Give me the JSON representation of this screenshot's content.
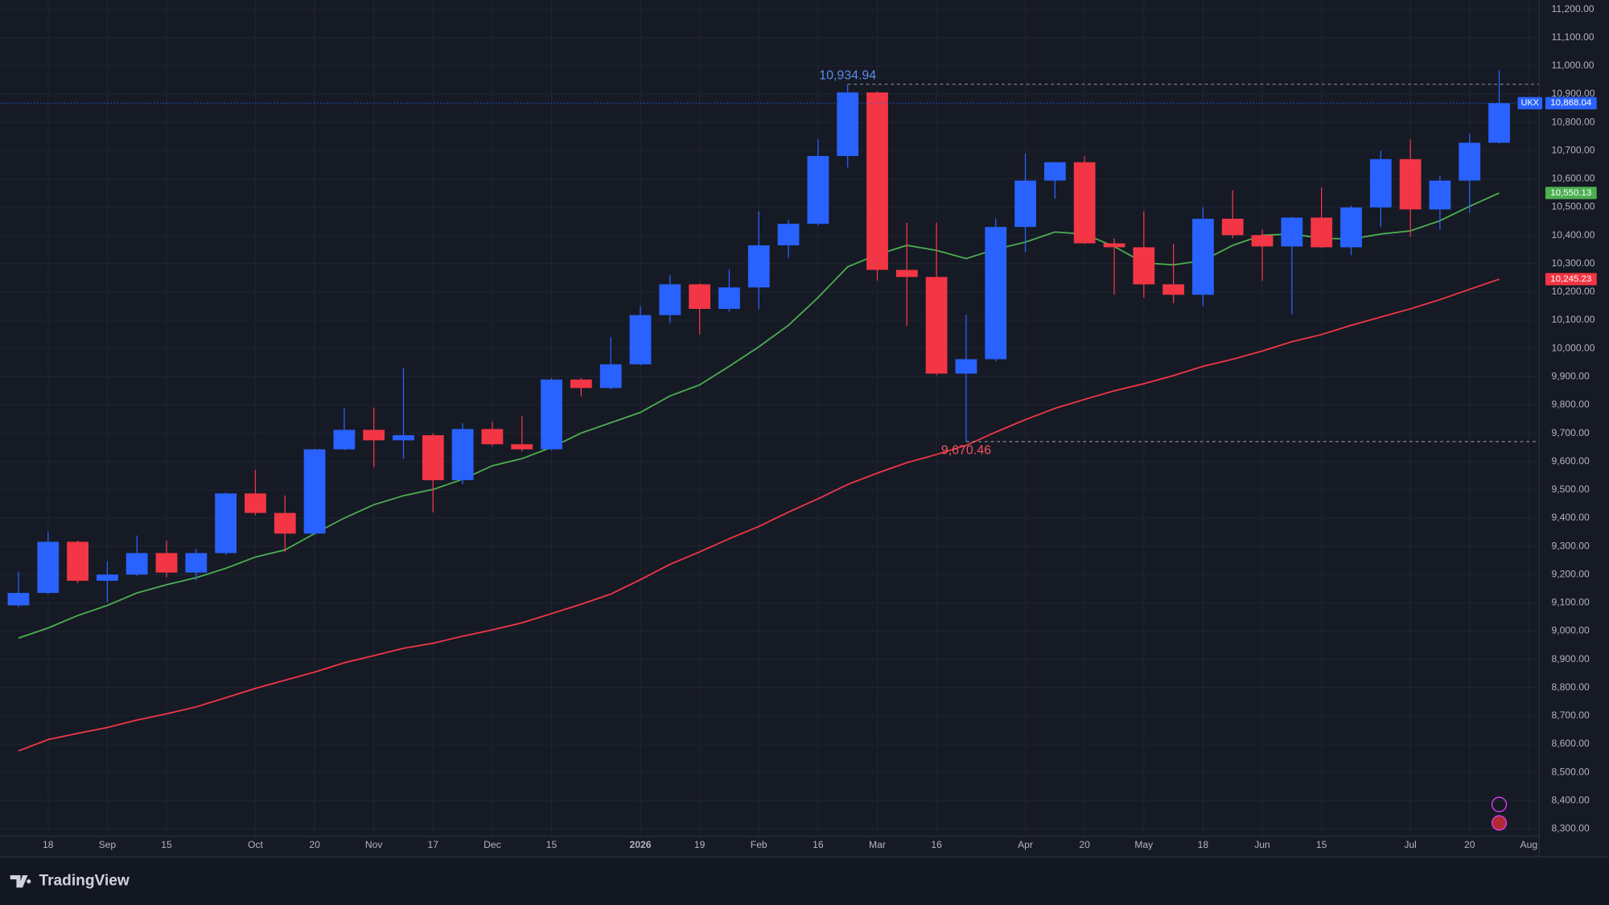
{
  "chart_data": {
    "type": "candlestick",
    "symbol": "UKX",
    "brand": "TradingView",
    "up_color": "#2962ff",
    "down_color": "#f23645",
    "categories": [
      null,
      "18",
      null,
      "Sep",
      null,
      "15",
      null,
      null,
      "Oct",
      null,
      "20",
      null,
      "Nov",
      null,
      "17",
      null,
      "Dec",
      null,
      "15",
      null,
      null,
      "2026",
      null,
      "19",
      null,
      "Feb",
      null,
      "16",
      null,
      "Mar",
      null,
      "16",
      null,
      null,
      "Apr",
      null,
      "20",
      null,
      "May",
      null,
      "18",
      null,
      "Jun",
      null,
      "15",
      null,
      null,
      "Jul",
      null,
      "20",
      null,
      "Aug"
    ],
    "open": [
      9091,
      9135,
      9316,
      9178,
      9200,
      9276,
      9207,
      9276,
      9487,
      9418,
      9345,
      9643,
      9712,
      9675,
      9693,
      9534,
      9715,
      9661,
      9643,
      9890,
      9860,
      9944,
      10118,
      10227,
      10140,
      10216,
      10365,
      10441,
      10681,
      10906,
      10278,
      10253,
      9911,
      9962,
      10430,
      10594,
      10659,
      10372,
      10358,
      10227,
      10190,
      10459,
      10401,
      10361,
      10463,
      10358,
      10499,
      10670,
      10492,
      10594,
      10728,
      null
    ],
    "high": [
      9211,
      9352,
      9320,
      9247,
      9338,
      9320,
      9290,
      9490,
      9570,
      9480,
      9645,
      9790,
      9790,
      9930,
      9700,
      9735,
      9740,
      9760,
      9895,
      9895,
      10040,
      10150,
      10260,
      10230,
      10280,
      10485,
      10455,
      10740,
      10934.94,
      10910,
      10445,
      10445,
      10120,
      10460,
      10690,
      10660,
      10680,
      10390,
      10485,
      10370,
      10500,
      10560,
      10420,
      10465,
      10570,
      10505,
      10700,
      10740,
      10610,
      10760,
      10985,
      null
    ],
    "low": [
      9085,
      9130,
      9170,
      9102,
      9195,
      9190,
      9180,
      9270,
      9410,
      9280,
      9340,
      9640,
      9580,
      9610,
      9420,
      9520,
      9655,
      9635,
      9640,
      9830,
      9855,
      9940,
      10090,
      10050,
      10130,
      10140,
      10320,
      10435,
      10640,
      10240,
      10080,
      9905,
      9670.46,
      9955,
      10340,
      10530,
      10370,
      10190,
      10180,
      10160,
      10150,
      10390,
      10240,
      10120,
      10355,
      10330,
      10430,
      10395,
      10420,
      10480,
      10725,
      null
    ],
    "close": [
      9135,
      9316,
      9178,
      9200,
      9276,
      9207,
      9276,
      9487,
      9418,
      9345,
      9643,
      9712,
      9675,
      9693,
      9534,
      9715,
      9661,
      9643,
      9890,
      9860,
      9944,
      10118,
      10227,
      10140,
      10216,
      10365,
      10441,
      10681,
      10906,
      10278,
      10253,
      9911,
      9962,
      10430,
      10594,
      10659,
      10372,
      10358,
      10227,
      10190,
      10459,
      10401,
      10361,
      10463,
      10358,
      10499,
      10670,
      10492,
      10594,
      10728,
      10868.04,
      null
    ],
    "lines": [
      {
        "color": "#4caf50",
        "last_label": "10,550.13",
        "values": [
          8975,
          9011,
          9055,
          9091,
          9135,
          9164,
          9189,
          9222,
          9262,
          9287,
          9345,
          9400,
          9447,
          9479,
          9501,
          9537,
          9585,
          9610,
          9650,
          9701,
          9737,
          9774,
          9832,
          9871,
          9937,
          10006,
          10082,
          10180,
          10289,
          10332,
          10365,
          10347,
          10318,
          10351,
          10376,
          10412,
          10405,
          10361,
          10303,
          10296,
          10311,
          10365,
          10401,
          10405,
          10390,
          10387,
          10405,
          10416,
          10452,
          10503,
          10550.13,
          null
        ]
      },
      {
        "color": "#f23645",
        "last_label": "10,245.23",
        "values": [
          8576,
          8616,
          8638,
          8659,
          8685,
          8707,
          8732,
          8764,
          8797,
          8826,
          8855,
          8888,
          8913,
          8939,
          8957,
          8982,
          9004,
          9029,
          9062,
          9095,
          9131,
          9182,
          9236,
          9280,
          9327,
          9370,
          9421,
          9468,
          9519,
          9559,
          9596,
          9625,
          9657,
          9704,
          9748,
          9788,
          9820,
          9850,
          9875,
          9904,
          9937,
          9962,
          9991,
          10024,
          10049,
          10082,
          10111,
          10140,
          10173,
          10209,
          10245.23,
          null
        ]
      }
    ],
    "last_price": {
      "value": 10868.04,
      "label": "10,868.04"
    },
    "high_label": {
      "value": 10934.94,
      "label": "10,934.94"
    },
    "low_label": {
      "value": 9670.46,
      "label": "9,670.46"
    },
    "ylim": [
      8274,
      11233
    ],
    "yticks": [
      {
        "value": 8300,
        "label": "8,300.00"
      },
      {
        "value": 8400,
        "label": "8,400.00"
      },
      {
        "value": 8500,
        "label": "8,500.00"
      },
      {
        "value": 8600,
        "label": "8,600.00"
      },
      {
        "value": 8700,
        "label": "8,700.00"
      },
      {
        "value": 8800,
        "label": "8,800.00"
      },
      {
        "value": 8900,
        "label": "8,900.00"
      },
      {
        "value": 9000,
        "label": "9,000.00"
      },
      {
        "value": 9100,
        "label": "9,100.00"
      },
      {
        "value": 9200,
        "label": "9,200.00"
      },
      {
        "value": 9300,
        "label": "9,300.00"
      },
      {
        "value": 9400,
        "label": "9,400.00"
      },
      {
        "value": 9500,
        "label": "9,500.00"
      },
      {
        "value": 9600,
        "label": "9,600.00"
      },
      {
        "value": 9700,
        "label": "9,700.00"
      },
      {
        "value": 9800,
        "label": "9,800.00"
      },
      {
        "value": 9900,
        "label": "9,900.00"
      },
      {
        "value": 10000,
        "label": "10,000.00"
      },
      {
        "value": 10100,
        "label": "10,100.00"
      },
      {
        "value": 10200,
        "label": "10,200.00"
      },
      {
        "value": 10300,
        "label": "10,300.00"
      },
      {
        "value": 10400,
        "label": "10,400.00"
      },
      {
        "value": 10500,
        "label": "10,500.00"
      },
      {
        "value": 10600,
        "label": "10,600.00"
      },
      {
        "value": 10700,
        "label": "10,700.00"
      },
      {
        "value": 10800,
        "label": "10,800.00"
      },
      {
        "value": 10900,
        "label": "10,900.00"
      },
      {
        "value": 11000,
        "label": "11,000.00"
      },
      {
        "value": 11100,
        "label": "11,100.00"
      },
      {
        "value": 11200,
        "label": "11,200.00"
      }
    ],
    "grid": true
  }
}
